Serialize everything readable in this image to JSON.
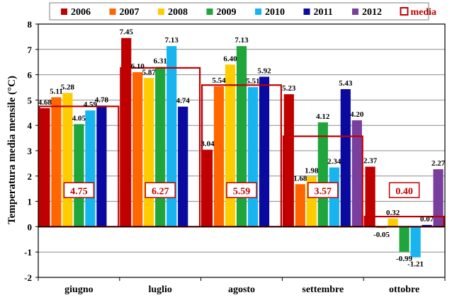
{
  "chart_data": {
    "type": "bar",
    "title": "",
    "xlabel": "",
    "ylabel": "Temperatura media mensile (°C)",
    "ylim": [
      -2,
      8
    ],
    "y_ticks": [
      "-2",
      "-1",
      "0",
      "1",
      "2",
      "3",
      "4",
      "5",
      "6",
      "7",
      "8"
    ],
    "grid": true,
    "legend_position": "top",
    "categories": [
      "giugno",
      "luglio",
      "agosto",
      "settembre",
      "ottobre"
    ],
    "series": [
      {
        "name": "2006",
        "color": "#c00000",
        "values": [
          4.68,
          7.45,
          3.04,
          5.23,
          2.37
        ]
      },
      {
        "name": "2007",
        "color": "#ff6600",
        "values": [
          5.11,
          6.1,
          5.54,
          1.68,
          -0.05
        ]
      },
      {
        "name": "2008",
        "color": "#ffcc00",
        "values": [
          5.28,
          5.87,
          6.4,
          1.98,
          0.32
        ]
      },
      {
        "name": "2009",
        "color": "#1fa53c",
        "values": [
          4.05,
          6.31,
          7.13,
          4.12,
          -0.99
        ]
      },
      {
        "name": "2010",
        "color": "#18b4f0",
        "values": [
          4.59,
          7.13,
          5.51,
          2.34,
          -1.21
        ]
      },
      {
        "name": "2011",
        "color": "#0a0aa0",
        "values": [
          4.78,
          4.74,
          5.92,
          5.43,
          0.07
        ]
      },
      {
        "name": "2012",
        "color": "#7a3f9e",
        "values": [
          null,
          null,
          null,
          4.2,
          2.27
        ]
      }
    ],
    "value_labels": [
      [
        "4.68",
        "7.45",
        "3.04",
        "5.23",
        "2.37"
      ],
      [
        "5.11",
        "6.10",
        "5.54",
        "1.68",
        "-0.05"
      ],
      [
        "5.28",
        "5.87",
        "6.40",
        "1.98",
        "0.32"
      ],
      [
        "4.05",
        "6.31",
        "7.13",
        "4.12",
        "-0.99"
      ],
      [
        "4.59",
        "7.13",
        "5.51",
        "2.34",
        "-1.21"
      ],
      [
        "4.78",
        "4.74",
        "5.92",
        "5.43",
        "0.07"
      ],
      [
        "",
        "",
        "",
        "4.20",
        "2.27"
      ]
    ],
    "media": {
      "name": "media",
      "color": "#c00000",
      "values": [
        4.75,
        6.27,
        5.59,
        3.57,
        0.4
      ],
      "labels": [
        "4.75",
        "6.27",
        "5.59",
        "3.57",
        "0.40"
      ]
    }
  }
}
